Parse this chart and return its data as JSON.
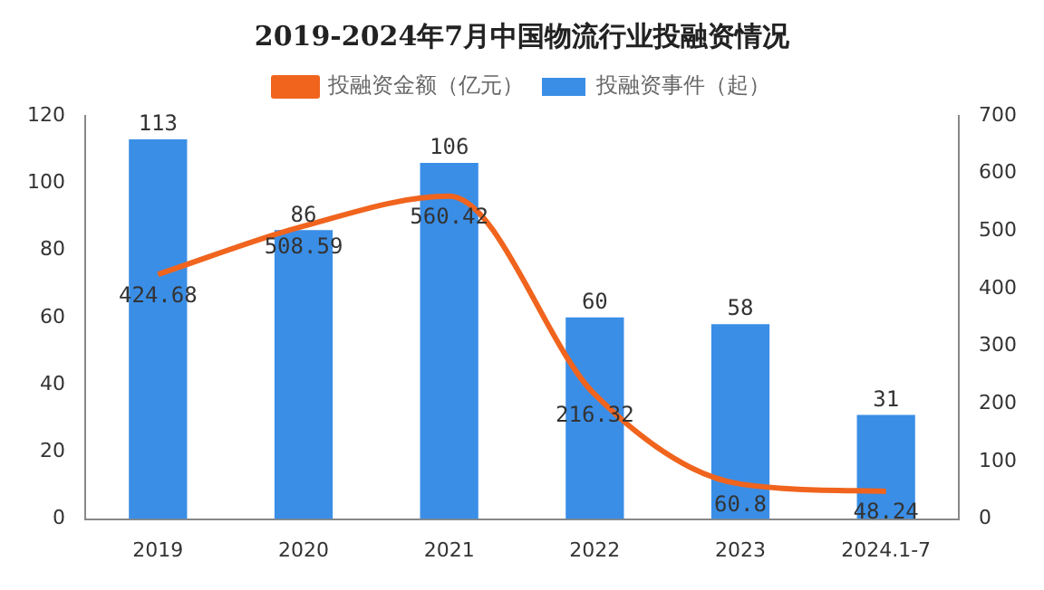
{
  "chart_data": {
    "type": "bar",
    "title": "2019-2024年7月中国物流行业投融资情况",
    "categories": [
      "2019",
      "2020",
      "2021",
      "2022",
      "2023",
      "2024.1-7"
    ],
    "series": [
      {
        "name": "投融资事件（起）",
        "color": "#3a8ee6",
        "values": [
          113,
          86,
          106,
          60,
          58,
          31
        ]
      },
      {
        "name": "投融资金额（亿元）",
        "type": "line",
        "axis": "y2",
        "color": "#f0641e",
        "values": [
          424.68,
          508.59,
          560.42,
          216.32,
          60.8,
          48.24
        ]
      }
    ],
    "ylim": [
      0,
      120
    ],
    "yticks": [
      0,
      20,
      40,
      60,
      80,
      100,
      120
    ],
    "y2lim": [
      0,
      700
    ],
    "y2ticks": [
      0,
      100,
      200,
      300,
      400,
      500,
      600,
      700
    ],
    "data_labels": true,
    "legend": "top",
    "grid": false,
    "marker": "none",
    "line_style": "solid"
  }
}
